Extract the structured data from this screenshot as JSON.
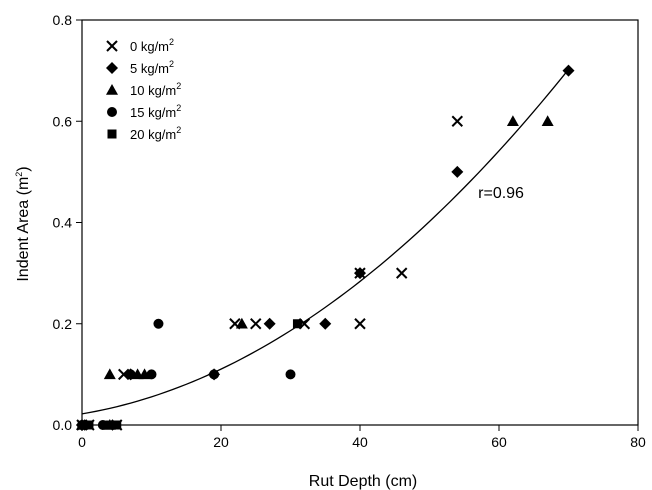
{
  "chart_data": {
    "type": "scatter",
    "xlabel": "Rut Depth (cm)",
    "ylabel": "Indent Area (m",
    "ylabel_sup": "2",
    "ylabel_close": ")",
    "xlim": [
      0,
      80
    ],
    "ylim": [
      0,
      0.8
    ],
    "xticks": [
      0,
      20,
      40,
      60,
      80
    ],
    "xtick_labels": [
      "0",
      "20",
      "40",
      "60",
      "80"
    ],
    "yticks": [
      0,
      0.2,
      0.4,
      0.6,
      0.8
    ],
    "ytick_labels": [
      "0.0",
      "0.2",
      "0.4",
      "0.6",
      "0.8"
    ],
    "grid": false,
    "legend_position": "top-left",
    "series": [
      {
        "name": "0 kg/m",
        "name_sup": "2",
        "marker": "x",
        "points": [
          [
            0,
            0
          ],
          [
            1,
            0
          ],
          [
            5,
            0
          ],
          [
            6,
            0.1
          ],
          [
            22,
            0.2
          ],
          [
            25,
            0.2
          ],
          [
            32,
            0.2
          ],
          [
            40,
            0.2
          ],
          [
            40,
            0.3
          ],
          [
            46,
            0.3
          ],
          [
            54,
            0.6
          ]
        ]
      },
      {
        "name": "5 kg/m",
        "name_sup": "2",
        "marker": "diamond",
        "points": [
          [
            0,
            0
          ],
          [
            7,
            0.1
          ],
          [
            19,
            0.1
          ],
          [
            27,
            0.2
          ],
          [
            35,
            0.2
          ],
          [
            40,
            0.3
          ],
          [
            54,
            0.5
          ],
          [
            70,
            0.7
          ]
        ]
      },
      {
        "name": "10 kg/m",
        "name_sup": "2",
        "marker": "triangle",
        "points": [
          [
            0,
            0
          ],
          [
            4,
            0
          ],
          [
            4,
            0.1
          ],
          [
            8,
            0.1
          ],
          [
            9,
            0.1
          ],
          [
            23,
            0.2
          ],
          [
            62,
            0.6
          ],
          [
            67,
            0.6
          ]
        ]
      },
      {
        "name": "15 kg/m",
        "name_sup": "2",
        "marker": "circle",
        "points": [
          [
            0,
            0
          ],
          [
            3,
            0
          ],
          [
            7,
            0.1
          ],
          [
            10,
            0.1
          ],
          [
            11,
            0.2
          ],
          [
            19,
            0.1
          ],
          [
            30,
            0.1
          ]
        ]
      },
      {
        "name": "20 kg/m",
        "name_sup": "2",
        "marker": "square",
        "points": [
          [
            1,
            0
          ],
          [
            4,
            0
          ],
          [
            5,
            0
          ],
          [
            31,
            0.2
          ]
        ]
      }
    ],
    "fit_curve": {
      "type": "quadratic",
      "coefficients": [
        0.022,
        0.0023,
        0.000106
      ],
      "x_range": [
        0,
        70
      ]
    },
    "annotations": [
      {
        "text": "r=0.96",
        "x": 57,
        "y": 0.46
      }
    ]
  }
}
